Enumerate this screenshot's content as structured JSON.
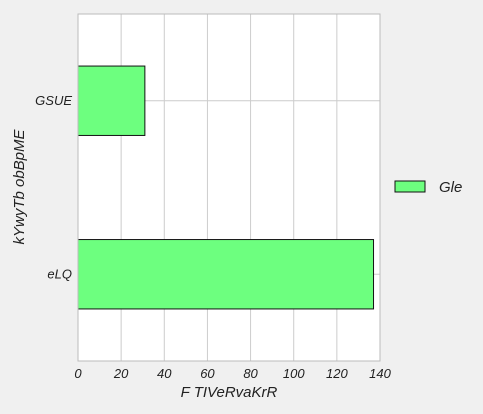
{
  "chart_data": {
    "type": "bar",
    "orientation": "horizontal",
    "categories": [
      "GSUE",
      "eLQ"
    ],
    "series": [
      {
        "name": "Gle",
        "values": [
          31,
          137
        ]
      }
    ],
    "xlabel": "F TIVeRvaKrR",
    "ylabel": "kYwyTb obBpME",
    "xlim": [
      0,
      140
    ],
    "xticks": [
      "0",
      "20",
      "40",
      "60",
      "80",
      "100",
      "120",
      "140"
    ],
    "grid": true,
    "legend_position": "right"
  },
  "colors": {
    "bar_fill": "#6dff7f",
    "bar_edge": "#111111",
    "plot_background": "#ffffff",
    "figure_background": "#f0f0f0",
    "grid": "#cccccc"
  }
}
